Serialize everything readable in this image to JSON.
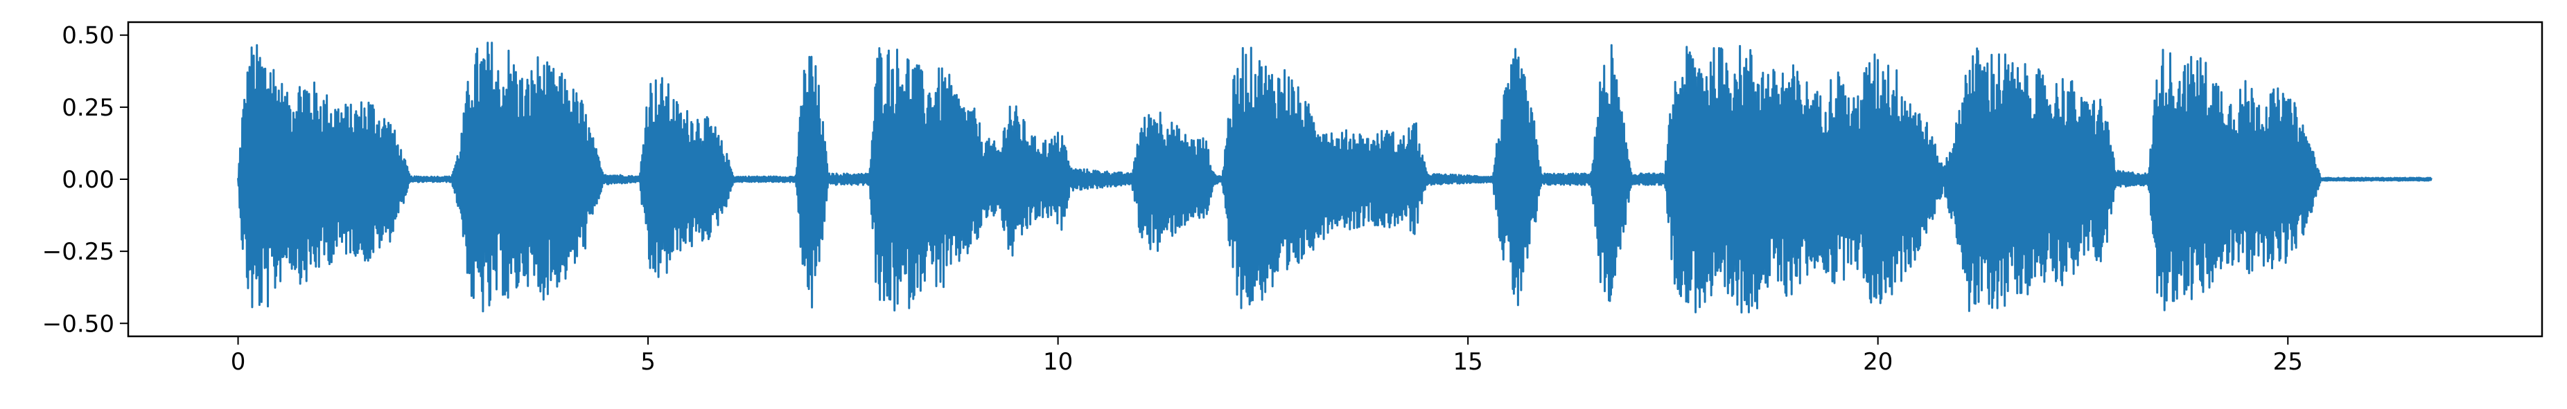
{
  "chart_data": {
    "type": "line",
    "title": "",
    "xlabel": "",
    "ylabel": "",
    "xlim": [
      -1.34,
      28.1
    ],
    "ylim": [
      -0.545,
      0.545
    ],
    "x_ticks": [
      0,
      5,
      10,
      15,
      20,
      25
    ],
    "x_tick_labels": [
      "0",
      "5",
      "10",
      "15",
      "20",
      "25"
    ],
    "y_ticks": [
      0.5,
      0.25,
      0.0,
      -0.25,
      -0.5
    ],
    "y_tick_labels": [
      "0.50",
      "0.25",
      "0.00",
      "−0.25",
      "−0.50"
    ],
    "grid": false,
    "legend": "none",
    "series": [
      {
        "color": "#1f77b4",
        "duration_s": 26.75,
        "envelope": [
          [
            0.0,
            0.005
          ],
          [
            0.05,
            0.25
          ],
          [
            0.15,
            0.48
          ],
          [
            0.25,
            0.47
          ],
          [
            0.4,
            0.45
          ],
          [
            0.6,
            0.3
          ],
          [
            0.8,
            0.38
          ],
          [
            1.0,
            0.32
          ],
          [
            1.2,
            0.28
          ],
          [
            1.4,
            0.26
          ],
          [
            1.6,
            0.3
          ],
          [
            1.75,
            0.24
          ],
          [
            1.85,
            0.22
          ],
          [
            2.0,
            0.1
          ],
          [
            2.1,
            0.01
          ],
          [
            2.6,
            0.01
          ],
          [
            2.7,
            0.12
          ],
          [
            2.85,
            0.45
          ],
          [
            3.0,
            0.48
          ],
          [
            3.1,
            0.49
          ],
          [
            3.2,
            0.38
          ],
          [
            3.3,
            0.47
          ],
          [
            3.5,
            0.35
          ],
          [
            3.65,
            0.44
          ],
          [
            3.8,
            0.4
          ],
          [
            4.0,
            0.36
          ],
          [
            4.2,
            0.28
          ],
          [
            4.3,
            0.18
          ],
          [
            4.45,
            0.02
          ],
          [
            4.9,
            0.01
          ],
          [
            5.0,
            0.36
          ],
          [
            5.2,
            0.36
          ],
          [
            5.4,
            0.25
          ],
          [
            5.6,
            0.24
          ],
          [
            5.8,
            0.2
          ],
          [
            5.95,
            0.1
          ],
          [
            6.05,
            0.01
          ],
          [
            6.8,
            0.01
          ],
          [
            6.9,
            0.4
          ],
          [
            7.0,
            0.48
          ],
          [
            7.1,
            0.3
          ],
          [
            7.2,
            0.02
          ],
          [
            7.7,
            0.02
          ],
          [
            7.8,
            0.48
          ],
          [
            8.0,
            0.47
          ],
          [
            8.2,
            0.45
          ],
          [
            8.4,
            0.35
          ],
          [
            8.6,
            0.4
          ],
          [
            8.8,
            0.3
          ],
          [
            9.0,
            0.24
          ],
          [
            9.1,
            0.15
          ],
          [
            9.3,
            0.12
          ],
          [
            9.4,
            0.3
          ],
          [
            9.5,
            0.25
          ],
          [
            9.7,
            0.15
          ],
          [
            9.9,
            0.14
          ],
          [
            10.05,
            0.18
          ],
          [
            10.15,
            0.04
          ],
          [
            10.9,
            0.02
          ],
          [
            11.0,
            0.2
          ],
          [
            11.2,
            0.27
          ],
          [
            11.4,
            0.2
          ],
          [
            11.6,
            0.15
          ],
          [
            11.8,
            0.15
          ],
          [
            11.9,
            0.02
          ],
          [
            12.0,
            0.01
          ],
          [
            12.1,
            0.3
          ],
          [
            12.25,
            0.48
          ],
          [
            12.4,
            0.45
          ],
          [
            12.6,
            0.4
          ],
          [
            12.8,
            0.4
          ],
          [
            13.0,
            0.28
          ],
          [
            13.2,
            0.22
          ],
          [
            13.4,
            0.16
          ],
          [
            13.6,
            0.18
          ],
          [
            13.8,
            0.15
          ],
          [
            14.0,
            0.18
          ],
          [
            14.2,
            0.15
          ],
          [
            14.35,
            0.22
          ],
          [
            14.5,
            0.02
          ],
          [
            15.3,
            0.01
          ],
          [
            15.4,
            0.25
          ],
          [
            15.6,
            0.48
          ],
          [
            15.8,
            0.22
          ],
          [
            15.9,
            0.02
          ],
          [
            16.5,
            0.02
          ],
          [
            16.6,
            0.35
          ],
          [
            16.75,
            0.48
          ],
          [
            16.9,
            0.2
          ],
          [
            17.0,
            0.02
          ],
          [
            17.4,
            0.02
          ],
          [
            17.5,
            0.35
          ],
          [
            17.7,
            0.48
          ],
          [
            17.9,
            0.45
          ],
          [
            18.1,
            0.47
          ],
          [
            18.3,
            0.47
          ],
          [
            18.5,
            0.46
          ],
          [
            18.7,
            0.38
          ],
          [
            18.9,
            0.42
          ],
          [
            19.1,
            0.36
          ],
          [
            19.3,
            0.3
          ],
          [
            19.5,
            0.4
          ],
          [
            19.7,
            0.28
          ],
          [
            19.9,
            0.44
          ],
          [
            20.1,
            0.44
          ],
          [
            20.3,
            0.36
          ],
          [
            20.5,
            0.26
          ],
          [
            20.6,
            0.2
          ],
          [
            20.8,
            0.04
          ],
          [
            20.9,
            0.15
          ],
          [
            21.0,
            0.25
          ],
          [
            21.1,
            0.48
          ],
          [
            21.3,
            0.45
          ],
          [
            21.5,
            0.46
          ],
          [
            21.7,
            0.4
          ],
          [
            21.9,
            0.4
          ],
          [
            22.1,
            0.34
          ],
          [
            22.3,
            0.38
          ],
          [
            22.5,
            0.28
          ],
          [
            22.7,
            0.3
          ],
          [
            22.8,
            0.22
          ],
          [
            22.9,
            0.03
          ],
          [
            23.3,
            0.02
          ],
          [
            23.4,
            0.4
          ],
          [
            23.5,
            0.48
          ],
          [
            23.7,
            0.4
          ],
          [
            23.9,
            0.45
          ],
          [
            24.1,
            0.38
          ],
          [
            24.3,
            0.3
          ],
          [
            24.5,
            0.35
          ],
          [
            24.7,
            0.3
          ],
          [
            24.9,
            0.32
          ],
          [
            25.1,
            0.26
          ],
          [
            25.3,
            0.12
          ],
          [
            25.4,
            0.005
          ],
          [
            26.75,
            0.005
          ]
        ]
      }
    ]
  }
}
